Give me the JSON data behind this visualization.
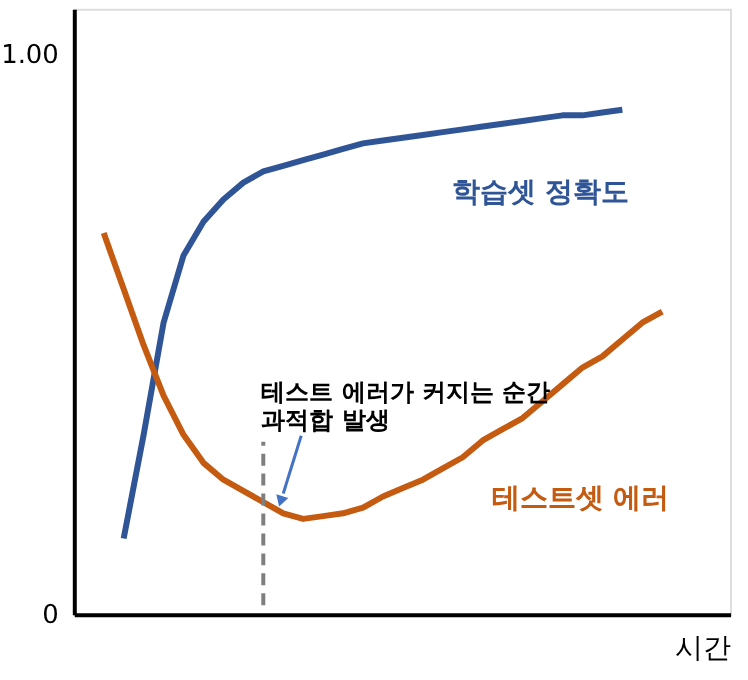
{
  "chart_data": {
    "type": "line",
    "xlabel": "시간",
    "categories": [
      null,
      null,
      null,
      null,
      null,
      null,
      null,
      null,
      null,
      null,
      null,
      null,
      null,
      null,
      null,
      null,
      null,
      null,
      null,
      null,
      null,
      null,
      null,
      null,
      null,
      null,
      null,
      null,
      null
    ],
    "ylim": [
      0,
      1.08
    ],
    "yticks": [
      0,
      {
        "value": 1,
        "label": "1.00"
      }
    ],
    "tick_labels": "y",
    "grid": false,
    "line_style": "solid",
    "marker": "none",
    "series": [
      {
        "name": "학습셋 정확도",
        "color": "#2f5597",
        "values": [
          null,
          0.135,
          0.32,
          0.52,
          0.64,
          0.7,
          0.74,
          0.77,
          0.79,
          0.8,
          0.81,
          0.82,
          0.83,
          0.84,
          0.845,
          0.85,
          0.855,
          0.86,
          0.865,
          0.87,
          0.875,
          0.88,
          0.885,
          0.89,
          0.89,
          0.895,
          0.9,
          null,
          null
        ]
      },
      {
        "name": "테스트셋 에러",
        "color": "#c55a11",
        "values": [
          0.68,
          0.58,
          0.48,
          0.39,
          0.32,
          0.27,
          0.24,
          0.22,
          0.2,
          0.18,
          0.17,
          0.175,
          0.18,
          0.19,
          0.21,
          0.225,
          0.24,
          0.26,
          0.28,
          0.31,
          0.33,
          0.35,
          0.38,
          0.41,
          0.44,
          0.46,
          0.49,
          0.52,
          0.54
        ]
      }
    ],
    "annotations": [
      "테스트 에러가 커지는 순간\n과적합 발생"
    ]
  }
}
